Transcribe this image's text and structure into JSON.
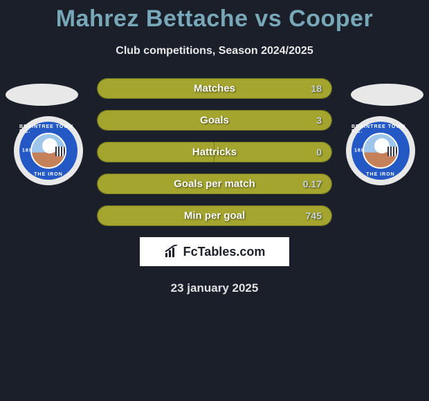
{
  "title": "Mahrez Bettache vs Cooper",
  "subtitle": "Club competitions, Season 2024/2025",
  "date": "23 january 2025",
  "branding": "FcTables.com",
  "colors": {
    "title": "#78a8b8",
    "background": "#1a1f2a",
    "bar_left": "#a4a52e",
    "bar_right": "#a4a52e",
    "bar_border": "#6a7020",
    "badge_ring": "#2458c5",
    "badge_outer": "#e8e8e8"
  },
  "club_badge": {
    "top_text": "BRAINTREE TOWN F.C.",
    "bottom_text": "THE IRON",
    "year": "1898"
  },
  "stats": [
    {
      "label": "Matches",
      "left_pct": 0,
      "right_pct": 100,
      "right_value": "18"
    },
    {
      "label": "Goals",
      "left_pct": 0,
      "right_pct": 100,
      "right_value": "3"
    },
    {
      "label": "Hattricks",
      "left_pct": 50,
      "right_pct": 50,
      "right_value": "0"
    },
    {
      "label": "Goals per match",
      "left_pct": 0,
      "right_pct": 100,
      "right_value": "0.17"
    },
    {
      "label": "Min per goal",
      "left_pct": 0,
      "right_pct": 100,
      "right_value": "745"
    }
  ]
}
